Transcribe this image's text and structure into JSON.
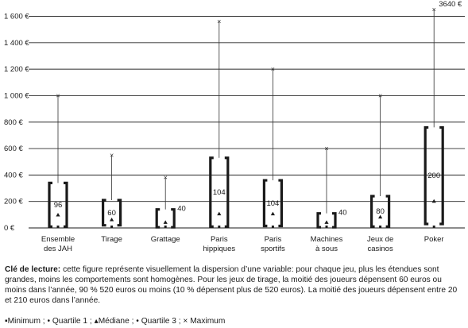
{
  "chart_data": {
    "type": "box",
    "title": "",
    "xlabel": "",
    "ylabel": "",
    "ylim": [
      0,
      1650
    ],
    "y_ticks": [
      0,
      200,
      400,
      600,
      800,
      1000,
      1200,
      1400,
      1600
    ],
    "y_tick_labels": [
      "0 €",
      "200 €",
      "400 €",
      "600 €",
      "800 €",
      "1 000 €",
      "1 200 €",
      "1 400 €",
      "1 600 €"
    ],
    "grid": "horizontal",
    "categories": [
      {
        "label": [
          "Ensemble",
          "des JAH"
        ],
        "min": 0,
        "q1": 10,
        "median": 96,
        "q3": 340,
        "max": 1000,
        "median_label": "96",
        "median_label_pos": "inside"
      },
      {
        "label": [
          "Tirage"
        ],
        "min": 0,
        "q1": 20,
        "median": 60,
        "q3": 210,
        "max": 550,
        "median_label": "60",
        "median_label_pos": "inside"
      },
      {
        "label": [
          "Grattage"
        ],
        "min": 0,
        "q1": 5,
        "median": 40,
        "q3": 140,
        "max": 380,
        "median_label": "40",
        "median_label_pos": "right"
      },
      {
        "label": [
          "Paris",
          "hippiques"
        ],
        "min": 0,
        "q1": 10,
        "median": 104,
        "q3": 530,
        "max": 1560,
        "median_label": "104",
        "median_label_pos": "inside"
      },
      {
        "label": [
          "Paris",
          "sportifs"
        ],
        "min": 0,
        "q1": 15,
        "median": 104,
        "q3": 360,
        "max": 1200,
        "median_label": "104",
        "median_label_pos": "inside"
      },
      {
        "label": [
          "Machines",
          "à sous"
        ],
        "min": 0,
        "q1": 5,
        "median": 40,
        "q3": 110,
        "max": 600,
        "median_label": "40",
        "median_label_pos": "right"
      },
      {
        "label": [
          "Jeux de",
          "casinos"
        ],
        "min": 0,
        "q1": 10,
        "median": 80,
        "q3": 240,
        "max": 1000,
        "median_label": "80",
        "median_label_pos": "inside"
      },
      {
        "label": [
          "Poker"
        ],
        "min": 0,
        "q1": 30,
        "median": 200,
        "q3": 760,
        "max": 3640,
        "median_label": "200",
        "median_label_pos": "inside",
        "max_label": "3640 €",
        "max_off_scale": true
      }
    ]
  },
  "note": {
    "title": "Clé de lecture:",
    "text": "cette figure représente visuellement la dispersion d’une variable: pour chaque jeu, plus les étendues sont grandes, moins les comportements sont homogènes. Pour les jeux de tirage, la moitié des joueurs dépensent 60 euros ou moins dans l’année, 90 % 520 euros ou moins (10 % dépensent plus de 520 euros). La moitié des joueurs dépensent entre 20 et 210 euros dans l’année."
  },
  "legend_line": {
    "minimum": "Minimum ;",
    "q1": "Quartile 1 ;",
    "median": "Médiane ;",
    "q3": "Quartile 3 ;",
    "maximum": "Maximum"
  }
}
